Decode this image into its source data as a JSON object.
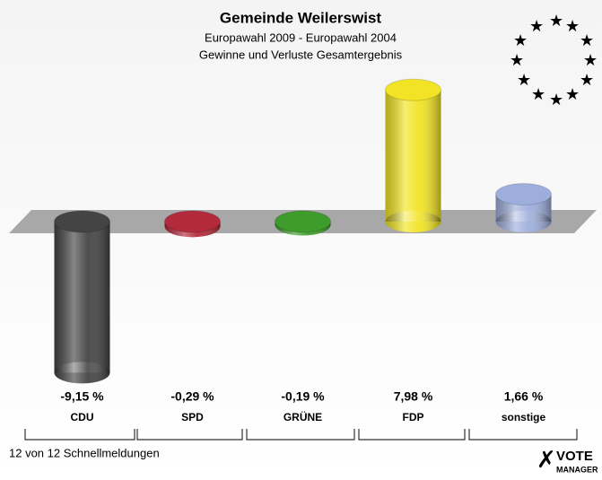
{
  "chart_data": {
    "type": "bar",
    "title": "Gemeinde Weilerswist",
    "subtitle": [
      "Europawahl 2009 - Europawahl 2004",
      "Gewinne und Verluste Gesamtergebnis"
    ],
    "categories": [
      "CDU",
      "SPD",
      "GRÜNE",
      "FDP",
      "sonstige"
    ],
    "values": [
      -9.15,
      -0.29,
      -0.19,
      7.98,
      1.66
    ],
    "value_labels": [
      "-9,15 %",
      "-0,29 %",
      "-0,19 %",
      "7,98 %",
      "1,66 %"
    ],
    "colors": [
      "#444444",
      "#b22a3c",
      "#3e9c2c",
      "#f2e424",
      "#9eaedc"
    ],
    "footer": "12 von 12 Schnellmeldungen",
    "logo": [
      "VOTE",
      "MANAGER"
    ]
  }
}
